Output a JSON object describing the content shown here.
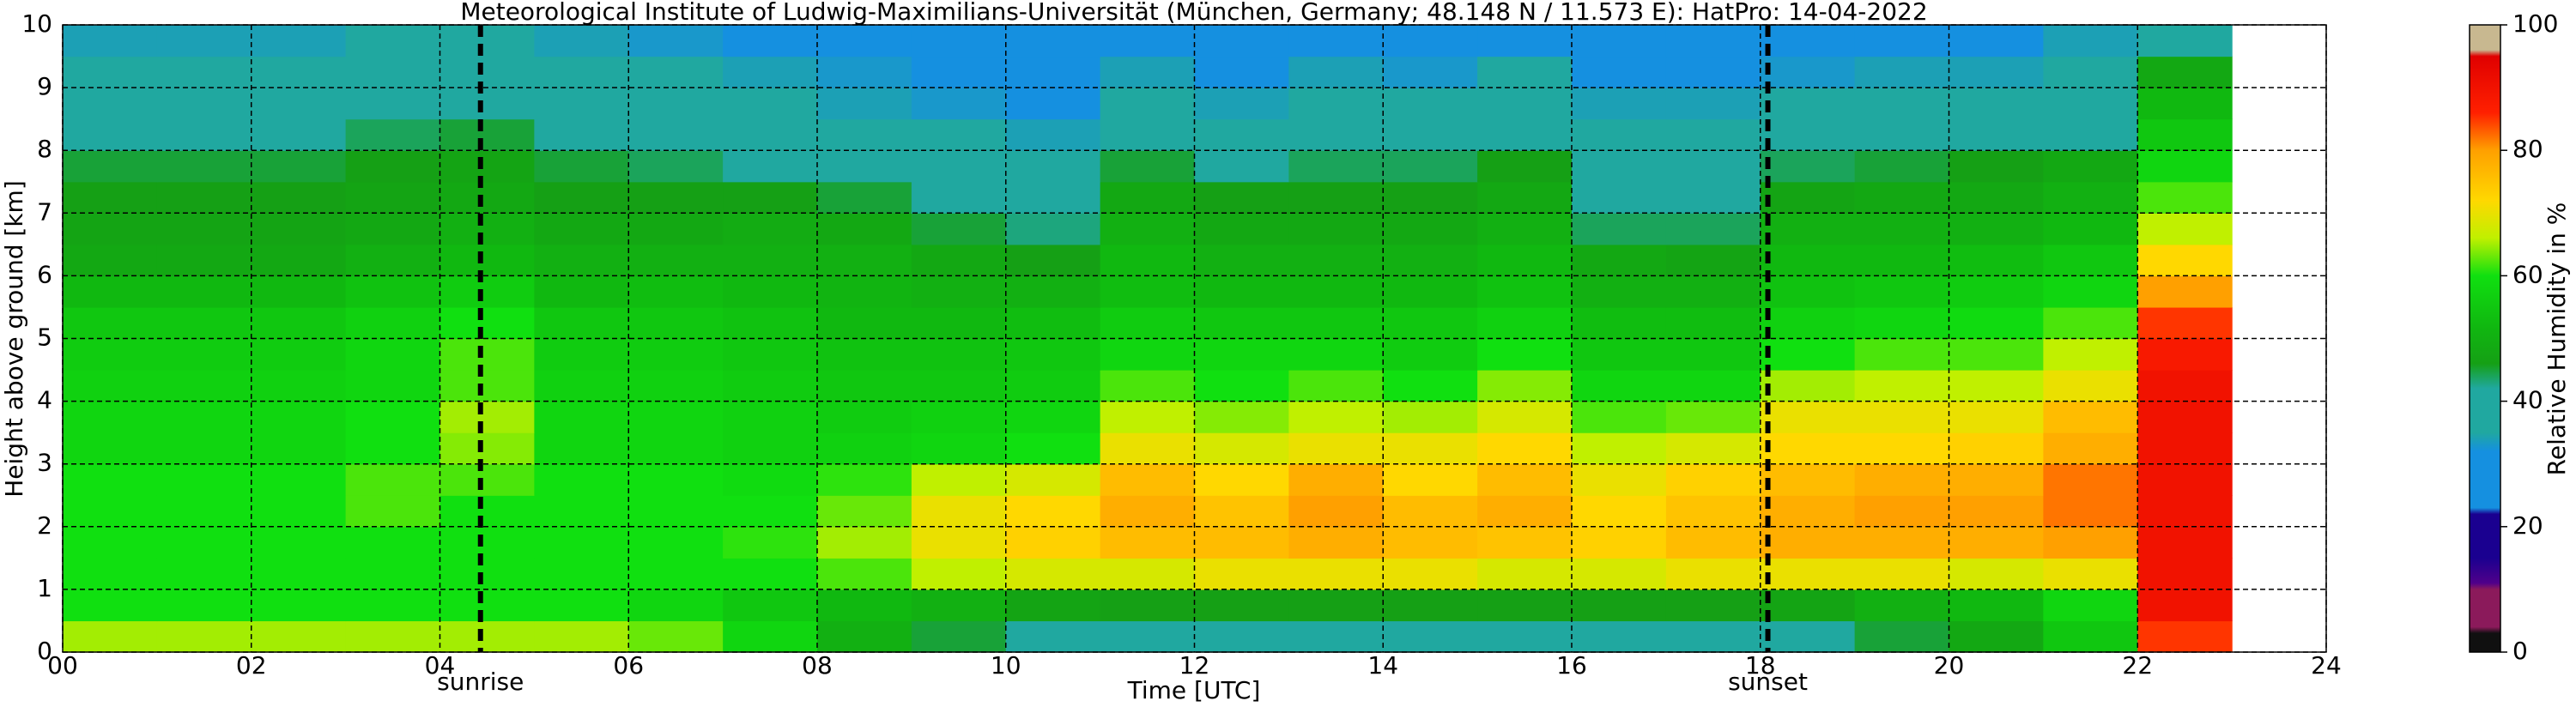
{
  "chart_data": {
    "type": "heatmap",
    "title": "Meteorological Institute of Ludwig-Maximilians-Universität (München, Germany; 48.148 N / 11.573 E):    HatPro: 14-04-2022",
    "xlabel": "Time [UTC]",
    "ylabel": "Height above ground [km]",
    "clabel": "Relative Humidity in %",
    "xlim": [
      0,
      24
    ],
    "ylim": [
      0,
      10
    ],
    "clim": [
      0,
      100
    ],
    "xticks": [
      {
        "value": 0,
        "label": "00"
      },
      {
        "value": 2,
        "label": "02"
      },
      {
        "value": 4,
        "label": "04"
      },
      {
        "value": 6,
        "label": "06"
      },
      {
        "value": 8,
        "label": "08"
      },
      10,
      12,
      14,
      16,
      18,
      20,
      22,
      24
    ],
    "yticks": [
      0,
      1,
      2,
      3,
      4,
      5,
      6,
      7,
      8,
      9,
      10
    ],
    "cticks": [
      0,
      20,
      40,
      60,
      80,
      100
    ],
    "grid": true,
    "annotations": [
      {
        "label": "sunrise",
        "x": 4.43
      },
      {
        "label": "sunset",
        "x": 18.08
      }
    ],
    "colormap": [
      [
        0,
        "#101010"
      ],
      [
        3,
        "#101010"
      ],
      [
        4,
        "#8b1a5b"
      ],
      [
        10,
        "#8b1a5b"
      ],
      [
        11,
        "#50008a"
      ],
      [
        15,
        "#1a0090"
      ],
      [
        22,
        "#1a0090"
      ],
      [
        23,
        "#1590e0"
      ],
      [
        32,
        "#1590e0"
      ],
      [
        35,
        "#20a8a0"
      ],
      [
        42,
        "#20a8a0"
      ],
      [
        46,
        "#15a015"
      ],
      [
        52,
        "#10b810"
      ],
      [
        60,
        "#10e010"
      ],
      [
        66,
        "#c0f000"
      ],
      [
        72,
        "#ffd800"
      ],
      [
        80,
        "#ffa000"
      ],
      [
        86,
        "#ff2000"
      ],
      [
        95,
        "#e00000"
      ],
      [
        96,
        "#c8b890"
      ],
      [
        100,
        "#c8b890"
      ]
    ],
    "xbins": [
      0,
      1,
      2,
      3,
      4,
      5,
      6,
      7,
      8,
      9,
      10,
      11,
      12,
      13,
      14,
      15,
      16,
      17,
      18,
      19,
      20,
      21,
      22,
      23
    ],
    "ybins": [
      0,
      0.5,
      1,
      1.5,
      2,
      2.5,
      3,
      3.5,
      4,
      4.5,
      5,
      5.5,
      6,
      6.5,
      7,
      7.5,
      8,
      8.5,
      9,
      9.5,
      10
    ],
    "values": [
      [
        65,
        65,
        65,
        65,
        65,
        65,
        63,
        58,
        50,
        45,
        42,
        40,
        40,
        40,
        40,
        40,
        40,
        40,
        42,
        45,
        48,
        55,
        85
      ],
      [
        60,
        60,
        60,
        60,
        60,
        60,
        58,
        55,
        52,
        50,
        47,
        46,
        46,
        46,
        46,
        46,
        46,
        46,
        47,
        50,
        52,
        58,
        90
      ],
      [
        60,
        60,
        60,
        60,
        60,
        60,
        60,
        60,
        62,
        66,
        68,
        68,
        70,
        70,
        70,
        68,
        68,
        70,
        70,
        70,
        68,
        70,
        90
      ],
      [
        60,
        60,
        60,
        60,
        60,
        60,
        60,
        61,
        65,
        70,
        73,
        76,
        76,
        78,
        76,
        75,
        73,
        76,
        78,
        78,
        78,
        80,
        90
      ],
      [
        60,
        60,
        60,
        62,
        60,
        60,
        60,
        60,
        63,
        70,
        72,
        78,
        75,
        80,
        76,
        78,
        72,
        75,
        78,
        80,
        80,
        82,
        90
      ],
      [
        60,
        60,
        60,
        62,
        62,
        60,
        60,
        59,
        61,
        66,
        68,
        76,
        72,
        78,
        72,
        76,
        70,
        73,
        76,
        78,
        78,
        82,
        90
      ],
      [
        58,
        58,
        58,
        60,
        64,
        58,
        58,
        57,
        57,
        58,
        60,
        70,
        68,
        70,
        70,
        72,
        66,
        68,
        72,
        72,
        73,
        78,
        90
      ],
      [
        58,
        58,
        58,
        60,
        65,
        58,
        58,
        57,
        56,
        57,
        58,
        66,
        64,
        66,
        65,
        68,
        62,
        63,
        70,
        70,
        70,
        76,
        90
      ],
      [
        57,
        57,
        57,
        58,
        62,
        57,
        57,
        56,
        55,
        55,
        56,
        62,
        60,
        62,
        60,
        64,
        58,
        58,
        65,
        66,
        66,
        70,
        90
      ],
      [
        56,
        56,
        56,
        58,
        62,
        56,
        56,
        55,
        54,
        54,
        55,
        58,
        58,
        58,
        56,
        60,
        55,
        55,
        60,
        62,
        62,
        66,
        88
      ],
      [
        55,
        55,
        55,
        57,
        60,
        55,
        55,
        54,
        52,
        52,
        53,
        56,
        55,
        55,
        55,
        57,
        53,
        53,
        57,
        58,
        59,
        62,
        85
      ],
      [
        52,
        52,
        52,
        54,
        56,
        52,
        53,
        52,
        51,
        50,
        50,
        53,
        52,
        52,
        52,
        54,
        50,
        50,
        54,
        55,
        56,
        58,
        80
      ],
      [
        48,
        48,
        48,
        50,
        52,
        50,
        50,
        50,
        50,
        48,
        46,
        52,
        50,
        50,
        50,
        52,
        48,
        47,
        52,
        52,
        53,
        55,
        72
      ],
      [
        47,
        47,
        47,
        48,
        50,
        48,
        48,
        49,
        48,
        45,
        43,
        50,
        48,
        48,
        48,
        50,
        44,
        44,
        50,
        50,
        50,
        52,
        66
      ],
      [
        46,
        46,
        46,
        47,
        48,
        46,
        46,
        46,
        45,
        42,
        40,
        48,
        46,
        46,
        46,
        48,
        42,
        42,
        47,
        48,
        48,
        50,
        62
      ],
      [
        45,
        45,
        45,
        46,
        47,
        45,
        44,
        42,
        40,
        38,
        37,
        45,
        42,
        44,
        44,
        46,
        40,
        40,
        44,
        45,
        46,
        48,
        58
      ],
      [
        42,
        42,
        42,
        44,
        45,
        42,
        40,
        38,
        36,
        35,
        34,
        40,
        38,
        40,
        40,
        42,
        37,
        37,
        38,
        40,
        40,
        42,
        55
      ],
      [
        38,
        38,
        38,
        40,
        42,
        38,
        36,
        35,
        34,
        33,
        32,
        36,
        34,
        36,
        36,
        38,
        34,
        34,
        35,
        36,
        36,
        38,
        52
      ],
      [
        36,
        36,
        36,
        37,
        38,
        36,
        35,
        34,
        33,
        32,
        30,
        34,
        32,
        34,
        33,
        35,
        32,
        32,
        33,
        34,
        34,
        36,
        48
      ],
      [
        34,
        34,
        34,
        35,
        36,
        34,
        33,
        32,
        31,
        30,
        28,
        32,
        30,
        31,
        31,
        32,
        30,
        30,
        31,
        32,
        32,
        34,
        42
      ]
    ]
  }
}
